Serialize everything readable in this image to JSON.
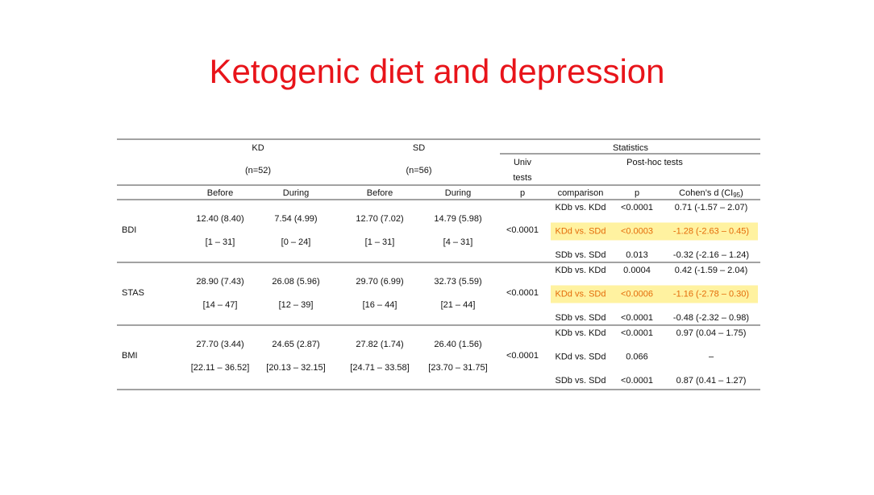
{
  "title": "Ketogenic diet and depression",
  "table": {
    "groups": [
      {
        "name": "KD",
        "n": "(n=52)"
      },
      {
        "name": "SD",
        "n": "(n=56)"
      }
    ],
    "statistics": "Statistics",
    "univ": [
      "Univ",
      "tests"
    ],
    "posthoc": "Post-hoc tests",
    "subheaders": [
      "Before",
      "During",
      "Before",
      "During",
      "p",
      "comparison",
      "p"
    ],
    "cohen": {
      "text": "Cohen’s d (CI",
      "sub": "95",
      "end": ")"
    },
    "rows": [
      {
        "label": "BDI",
        "cells": [
          [
            "12.40 (8.40)",
            "[1 – 31]"
          ],
          [
            "7.54 (4.99)",
            "[0 – 24]"
          ],
          [
            "12.70 (7.02)",
            "[1 – 31]"
          ],
          [
            "14.79 (5.98)",
            "[4 – 31]"
          ]
        ],
        "p": "<0.0001",
        "posthoc": [
          {
            "comparison": "KDb vs. KDd",
            "p": "<0.0001",
            "d": "0.71 (-1.57 – 2.07)",
            "highlight": false
          },
          {
            "comparison": "KDd vs. SDd",
            "p": "<0.0003",
            "d": "-1.28 (-2.63 – 0.45)",
            "highlight": true
          },
          {
            "comparison": "SDb vs. SDd",
            "p": "0.013",
            "d": "-0.32 (-2.16 – 1.24)",
            "highlight": false
          }
        ]
      },
      {
        "label": "STAS",
        "cells": [
          [
            "28.90 (7.43)",
            "[14 – 47]"
          ],
          [
            "26.08 (5.96)",
            "[12 – 39]"
          ],
          [
            "29.70 (6.99)",
            "[16 – 44]"
          ],
          [
            "32.73 (5.59)",
            "[21 – 44]"
          ]
        ],
        "p": "<0.0001",
        "posthoc": [
          {
            "comparison": "KDb vs. KDd",
            "p": "0.0004",
            "d": "0.42 (-1.59 – 2.04)",
            "highlight": false
          },
          {
            "comparison": "KDd vs. SDd",
            "p": "<0.0006",
            "d": "-1.16 (-2.78 – 0.30)",
            "highlight": true
          },
          {
            "comparison": "SDb vs. SDd",
            "p": "<0.0001",
            "d": "-0.48 (-2.32 – 0.98)",
            "highlight": false
          }
        ]
      },
      {
        "label": "BMI",
        "cells": [
          [
            "27.70 (3.44)",
            "[22.11 – 36.52]"
          ],
          [
            "24.65 (2.87)",
            "[20.13 – 32.15]"
          ],
          [
            "27.82 (1.74)",
            "[24.71 – 33.58]"
          ],
          [
            "26.40 (1.56)",
            "[23.70 – 31.75]"
          ]
        ],
        "p": "<0.0001",
        "posthoc": [
          {
            "comparison": "KDb vs. KDd",
            "p": "<0.0001",
            "d": "0.97 (0.04 – 1.75)",
            "highlight": false
          },
          {
            "comparison": "KDd vs. SDd",
            "p": "0.066",
            "d": "–",
            "highlight": false
          },
          {
            "comparison": "SDb vs. SDd",
            "p": "<0.0001",
            "d": "0.87 (0.41 – 1.27)",
            "highlight": false
          }
        ]
      }
    ]
  }
}
